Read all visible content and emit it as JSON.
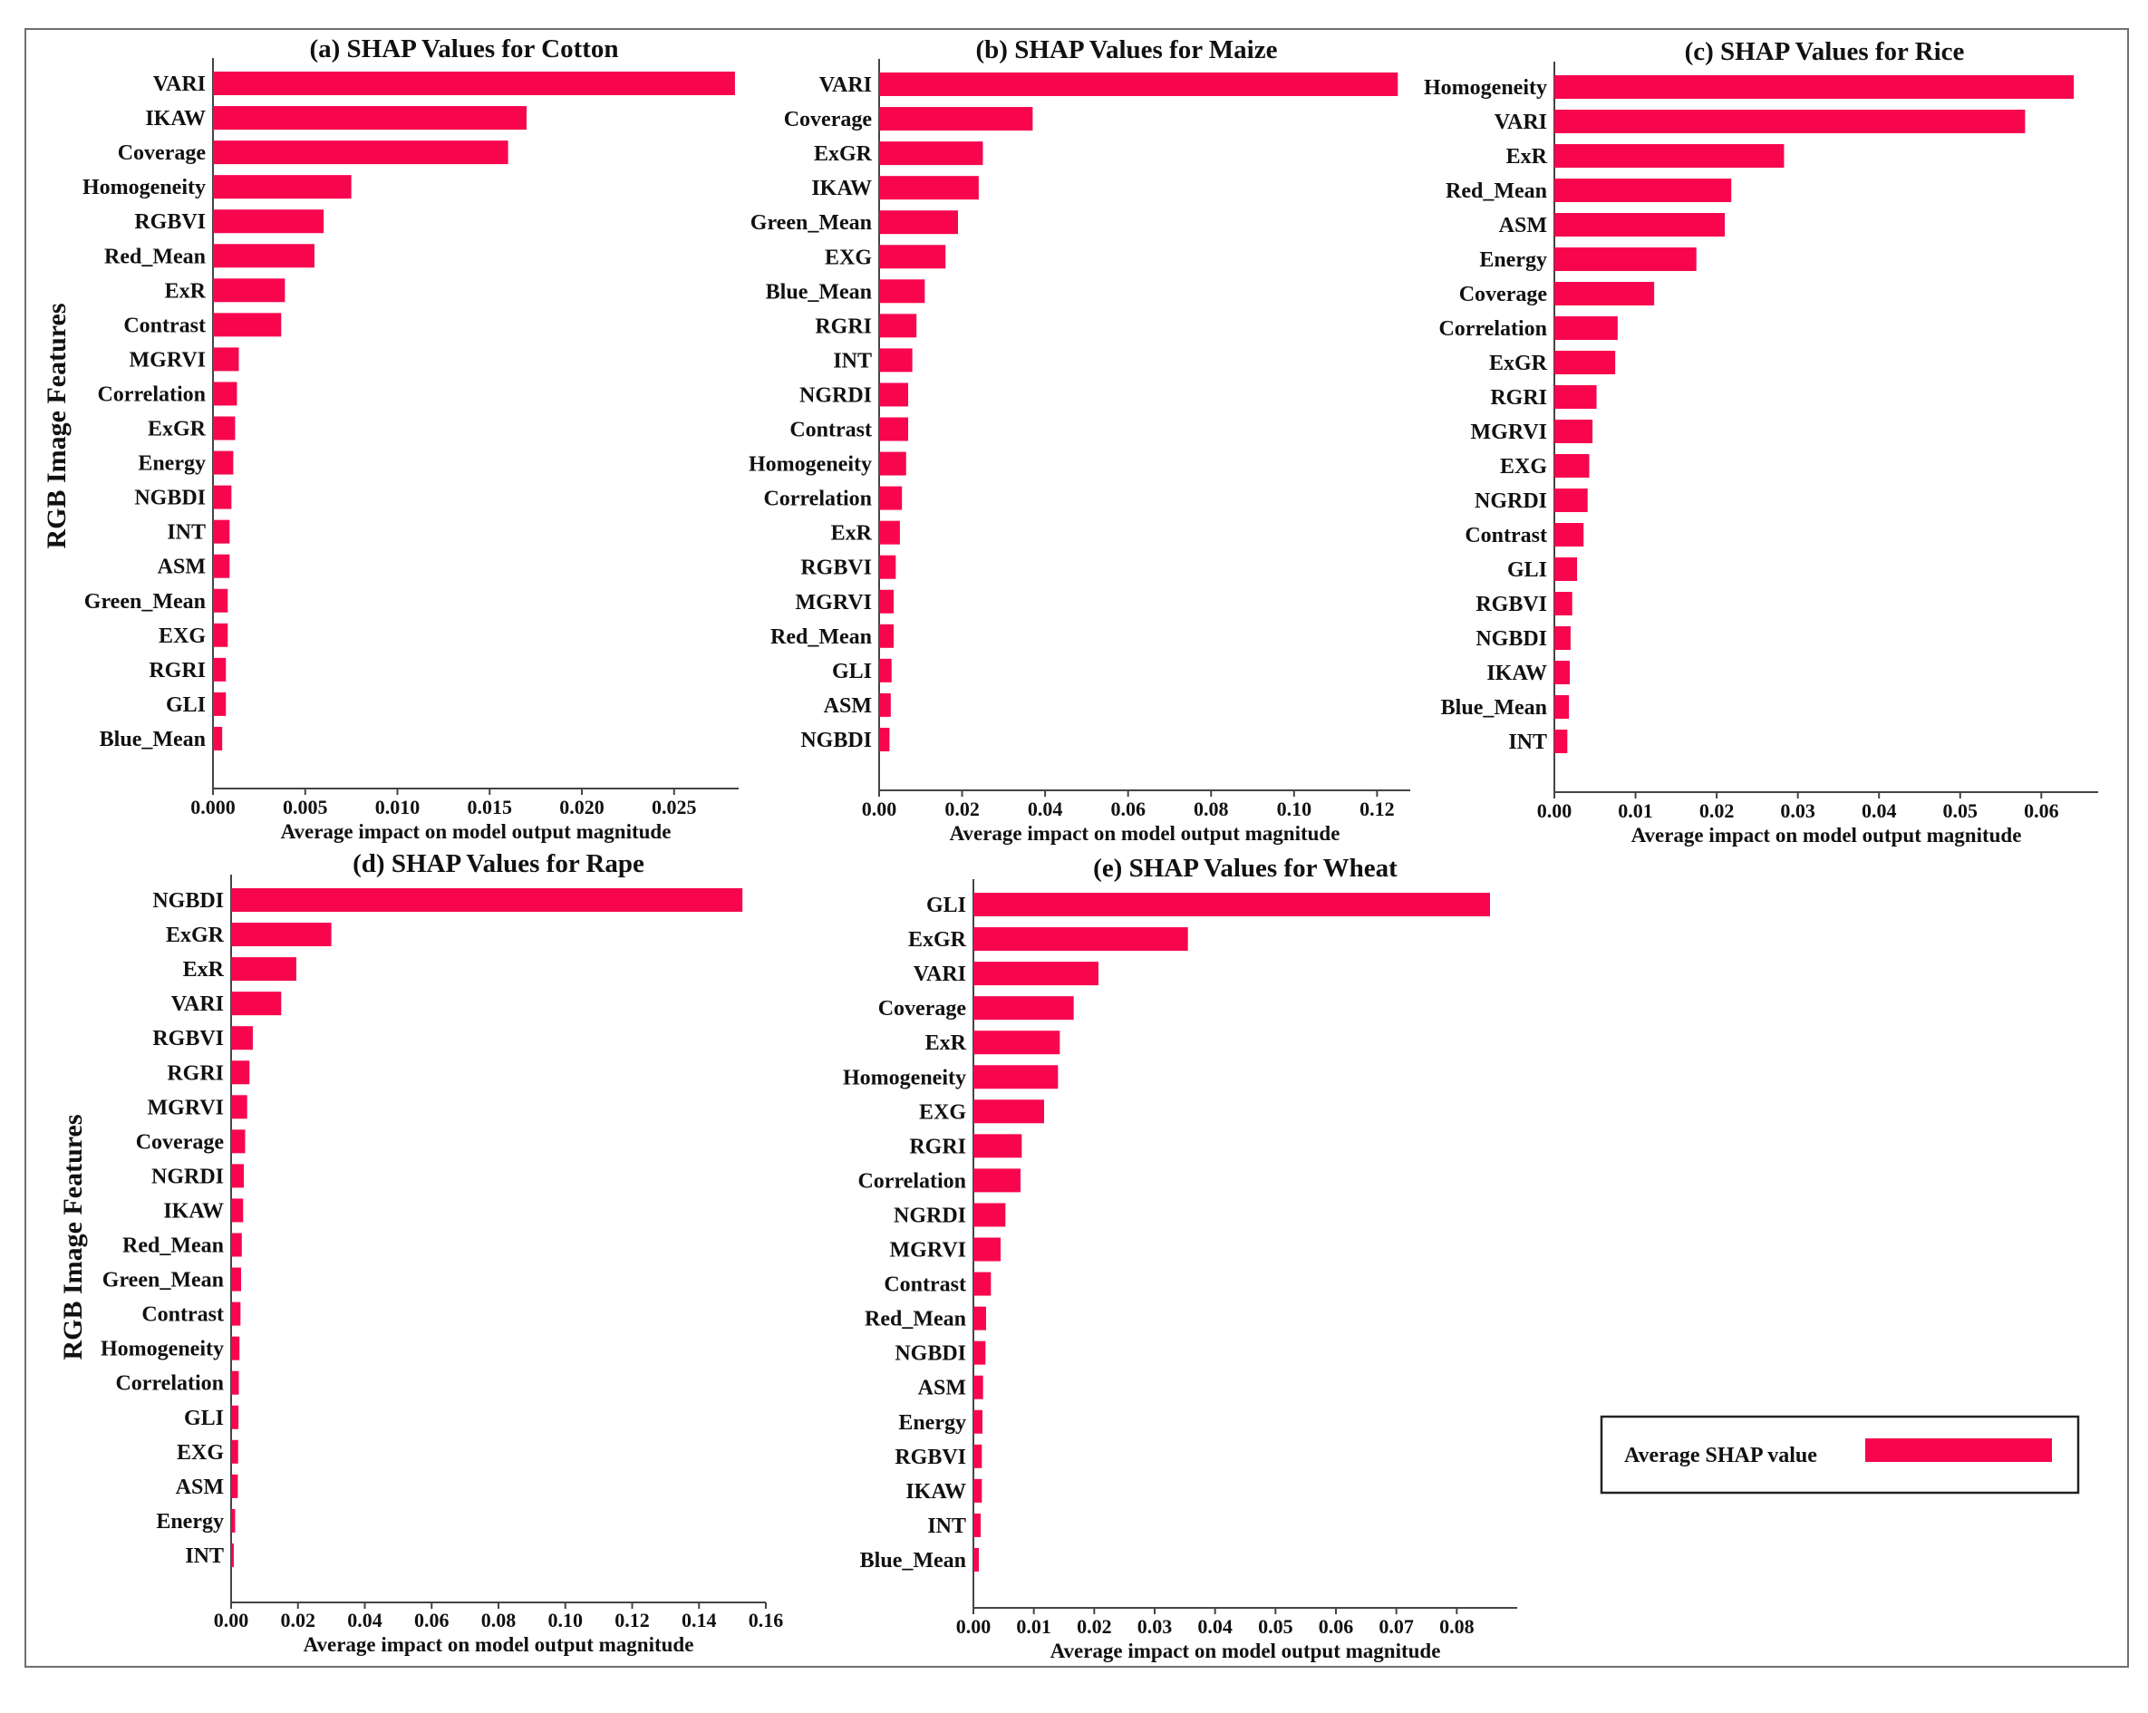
{
  "figure": {
    "y_axis_title": "RGB Image Features",
    "legend_label": "Average SHAP value",
    "bar_color": "#F7064E"
  },
  "chart_data": [
    {
      "id": "cotton",
      "type": "bar",
      "orientation": "horizontal",
      "title": "(a) SHAP Values for Cotton",
      "xlabel": "Average impact on model output magnitude",
      "ylabel": "RGB Image Features",
      "xlim": [
        0,
        0.0285
      ],
      "xticks": [
        0,
        0.005,
        0.01,
        0.015,
        0.02,
        0.025
      ],
      "xtick_labels": [
        "0.000",
        "0.005",
        "0.010",
        "0.015",
        "0.020",
        "0.025"
      ],
      "categories": [
        "VARI",
        "IKAW",
        "Coverage",
        "Homogeneity",
        "RGBVI",
        "Red_Mean",
        "ExR",
        "Contrast",
        "MGRVI",
        "Correlation",
        "ExGR",
        "Energy",
        "NGBDI",
        "INT",
        "ASM",
        "Green_Mean",
        "EXG",
        "RGRI",
        "GLI",
        "Blue_Mean"
      ],
      "values": [
        0.0283,
        0.017,
        0.016,
        0.0075,
        0.006,
        0.0055,
        0.0039,
        0.0037,
        0.0014,
        0.0013,
        0.0012,
        0.0011,
        0.001,
        0.0009,
        0.0009,
        0.0008,
        0.0008,
        0.0007,
        0.0007,
        0.0005
      ]
    },
    {
      "id": "maize",
      "type": "bar",
      "orientation": "horizontal",
      "title": "(b)  SHAP Values for Maize",
      "xlabel": "Average impact on model output magnitude",
      "xlim": [
        0,
        0.128
      ],
      "xticks": [
        0,
        0.02,
        0.04,
        0.06,
        0.08,
        0.1,
        0.12
      ],
      "xtick_labels": [
        "0.00",
        "0.02",
        "0.04",
        "0.06",
        "0.08",
        "0.10",
        "0.12"
      ],
      "categories": [
        "VARI",
        "Coverage",
        "ExGR",
        "IKAW",
        "Green_Mean",
        "EXG",
        "Blue_Mean",
        "RGRI",
        "INT",
        "NGRDI",
        "Contrast",
        "Homogeneity",
        "Correlation",
        "ExR",
        "RGBVI",
        "MGRVI",
        "Red_Mean",
        "GLI",
        "ASM",
        "NGBDI"
      ],
      "values": [
        0.125,
        0.037,
        0.025,
        0.024,
        0.019,
        0.016,
        0.011,
        0.009,
        0.008,
        0.007,
        0.007,
        0.0065,
        0.0055,
        0.005,
        0.004,
        0.0035,
        0.0035,
        0.003,
        0.0028,
        0.0025
      ]
    },
    {
      "id": "rice",
      "type": "bar",
      "orientation": "horizontal",
      "title": "(c)  SHAP Values for Rice",
      "xlabel": "Average impact on model output magnitude",
      "xlim": [
        0,
        0.067
      ],
      "xticks": [
        0,
        0.01,
        0.02,
        0.03,
        0.04,
        0.05,
        0.06
      ],
      "xtick_labels": [
        "0.00",
        "0.01",
        "0.02",
        "0.03",
        "0.04",
        "0.05",
        "0.06"
      ],
      "categories": [
        "Homogeneity",
        "VARI",
        "ExR",
        "Red_Mean",
        "ASM",
        "Energy",
        "Coverage",
        "Correlation",
        "ExGR",
        "RGRI",
        "MGRVI",
        "EXG",
        "NGRDI",
        "Contrast",
        "GLI",
        "RGBVI",
        "NGBDI",
        "IKAW",
        "Blue_Mean",
        "INT"
      ],
      "values": [
        0.064,
        0.058,
        0.0283,
        0.0218,
        0.021,
        0.0175,
        0.0123,
        0.0078,
        0.0075,
        0.0052,
        0.0047,
        0.0043,
        0.0041,
        0.0036,
        0.0028,
        0.0022,
        0.002,
        0.0019,
        0.0018,
        0.0016
      ]
    },
    {
      "id": "rape",
      "type": "bar",
      "orientation": "horizontal",
      "title": "(d)  SHAP Values for Rape",
      "xlabel": "Average impact on model output magnitude",
      "ylabel": "RGB Image Features",
      "xlim": [
        0,
        0.16
      ],
      "xticks": [
        0,
        0.02,
        0.04,
        0.06,
        0.08,
        0.1,
        0.12,
        0.14,
        0.16
      ],
      "xtick_labels": [
        "0.00",
        "0.02",
        "0.04",
        "0.06",
        "0.08",
        "0.10",
        "0.12",
        "0.14",
        "0.16"
      ],
      "categories": [
        "NGBDI",
        "ExGR",
        "ExR",
        "VARI",
        "RGBVI",
        "RGRI",
        "MGRVI",
        "Coverage",
        "NGRDI",
        "IKAW",
        "Red_Mean",
        "Green_Mean",
        "Contrast",
        "Homogeneity",
        "Correlation",
        "GLI",
        "EXG",
        "ASM",
        "Energy",
        "INT"
      ],
      "values": [
        0.153,
        0.03,
        0.0195,
        0.015,
        0.0065,
        0.0055,
        0.0048,
        0.0042,
        0.0038,
        0.0036,
        0.0032,
        0.003,
        0.0028,
        0.0025,
        0.0023,
        0.0022,
        0.0021,
        0.002,
        0.0012,
        0.0008
      ]
    },
    {
      "id": "wheat",
      "type": "bar",
      "orientation": "horizontal",
      "title": "(e)  SHAP Values for Wheat",
      "xlabel": "Average impact on model output magnitude",
      "xlim": [
        0,
        0.09
      ],
      "xticks": [
        0,
        0.01,
        0.02,
        0.03,
        0.04,
        0.05,
        0.06,
        0.07,
        0.08
      ],
      "xtick_labels": [
        "0.00",
        "0.01",
        "0.02",
        "0.03",
        "0.04",
        "0.05",
        "0.06",
        "0.07",
        "0.08"
      ],
      "categories": [
        "GLI",
        "ExGR",
        "VARI",
        "Coverage",
        "ExR",
        "Homogeneity",
        "EXG",
        "RGRI",
        "Correlation",
        "NGRDI",
        "MGRVI",
        "Contrast",
        "Red_Mean",
        "NGBDI",
        "ASM",
        "Energy",
        "RGBVI",
        "IKAW",
        "INT",
        "Blue_Mean"
      ],
      "values": [
        0.0855,
        0.0355,
        0.0207,
        0.0166,
        0.0143,
        0.014,
        0.0117,
        0.008,
        0.0078,
        0.0053,
        0.0045,
        0.0029,
        0.0021,
        0.002,
        0.0016,
        0.0015,
        0.0014,
        0.0014,
        0.0012,
        0.0009
      ]
    }
  ]
}
